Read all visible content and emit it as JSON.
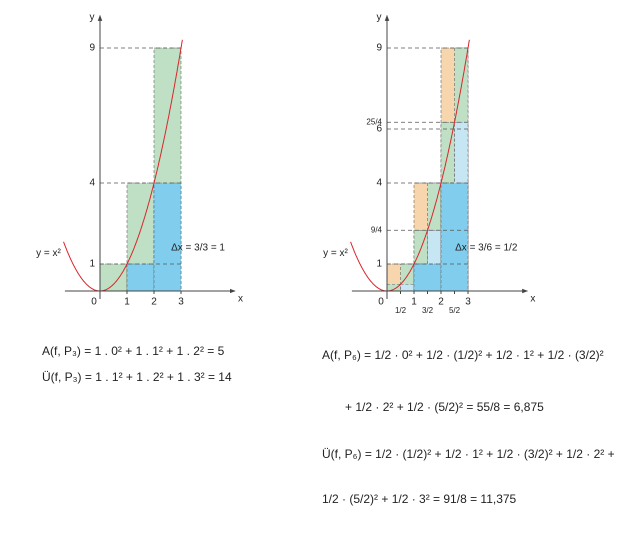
{
  "chart_data": [
    {
      "type": "riemann",
      "function_label": "y = x²",
      "annotation": "Δx = 3/3 = 1",
      "xlabel": "x",
      "ylabel": "y",
      "xlim": [
        -1.3,
        5
      ],
      "ylim": [
        0,
        10.2
      ],
      "xticks": [
        0,
        1,
        2,
        3
      ],
      "yticks": [
        1,
        4,
        9
      ],
      "series": [
        {
          "color": "#bfe0c4",
          "bins": [
            0,
            1,
            2,
            3
          ],
          "values": [
            1,
            4,
            9
          ]
        },
        {
          "color": "#80cdee",
          "bins": [
            0,
            1,
            2,
            3
          ],
          "values": [
            0,
            1,
            4
          ]
        }
      ]
    },
    {
      "type": "riemann",
      "function_label": "y = x²",
      "annotation": "Δx = 3/6 = 1/2",
      "xlabel": "x",
      "ylabel": "y",
      "xlim": [
        -1.3,
        5.2
      ],
      "ylim": [
        0,
        10.2
      ],
      "xticks": [
        0,
        {
          "value": 0.5,
          "label": "1/2"
        },
        1,
        {
          "value": 1.5,
          "label": "3/2"
        },
        2,
        {
          "value": 2.5,
          "label": "5/2"
        },
        3
      ],
      "yticks": [
        1,
        {
          "value": 2.25,
          "label": "9/4"
        },
        4,
        6,
        {
          "value": 6.25,
          "label": "25/4"
        },
        9
      ],
      "series": [
        {
          "color": "#f8d6ad",
          "bins": [
            0,
            1,
            2,
            3
          ],
          "values": [
            1,
            4,
            9
          ]
        },
        {
          "color": "#bfe0c4",
          "bins": [
            0,
            0.5,
            1,
            1.5,
            2,
            2.5,
            3
          ],
          "values": [
            0.25,
            1,
            2.25,
            4,
            6.25,
            9
          ]
        },
        {
          "color": "#c6e6f4",
          "bins": [
            0,
            0.5,
            1,
            1.5,
            2,
            2.5,
            3
          ],
          "values": [
            0,
            0.25,
            1,
            2.25,
            4,
            6.25
          ]
        },
        {
          "color": "#80cdee",
          "bins": [
            0,
            1,
            2,
            3
          ],
          "values": [
            0,
            1,
            4
          ]
        }
      ]
    }
  ],
  "formulas": {
    "left": [
      "A(f, P₃) = 1 . 0² + 1 . 1² + 1 . 2² = 5",
      "Ü(f, P₃) = 1 . 1² + 1 . 2² + 1 . 3² = 14"
    ],
    "right": [
      "A(f, P₆) = 1/2 · 0² + 1/2 · (1/2)² + 1/2 · 1² + 1/2 · (3/2)²",
      "+ 1/2 · 2² + 1/2 · (5/2)² = 55/8 = 6,875",
      "Ü(f, P₆) = 1/2 · (1/2)² + 1/2 · 1² + 1/2 · (3/2)² + 1/2 · 2² +",
      "1/2 · (5/2)² + 1/2 · 3² = 91/8 = 11,375"
    ]
  }
}
